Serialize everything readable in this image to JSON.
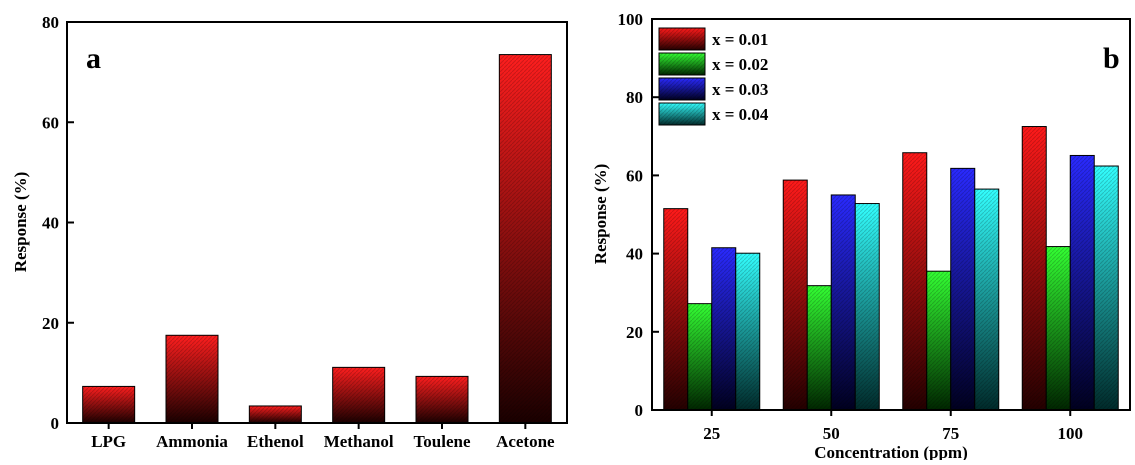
{
  "chart_data": [
    {
      "type": "bar",
      "panel_label": "a",
      "categories": [
        "LPG",
        "Ammonia",
        "Ethenol",
        "Methanol",
        "Toulene",
        "Acetone"
      ],
      "values": [
        7.3,
        17.5,
        3.4,
        11.1,
        9.3,
        73.5
      ],
      "xlabel": "",
      "ylabel": "Response (%)",
      "ylim": [
        0,
        80
      ],
      "yticks": [
        0,
        20,
        40,
        60,
        80
      ],
      "grid": false,
      "colors": {
        "bar_top": "#ff1e1e",
        "bar_bottom": "#1a0000"
      }
    },
    {
      "type": "bar",
      "panel_label": "b",
      "categories": [
        "25",
        "50",
        "75",
        "100"
      ],
      "xlabel": "Concentration (ppm)",
      "ylabel": "Response (%)",
      "ylim": [
        0,
        100
      ],
      "yticks": [
        0,
        20,
        40,
        60,
        80,
        100
      ],
      "grid": false,
      "legend_position": "top-left",
      "series": [
        {
          "name": "x = 0.01",
          "values": [
            51.5,
            58.8,
            65.8,
            72.5
          ],
          "color_top": "#ff1a1a",
          "color_bottom": "#240000"
        },
        {
          "name": "x = 0.02",
          "values": [
            27.2,
            31.8,
            35.5,
            41.8
          ],
          "color_top": "#33ff33",
          "color_bottom": "#002600"
        },
        {
          "name": "x = 0.03",
          "values": [
            41.5,
            55.0,
            61.8,
            65.1
          ],
          "color_top": "#2a2aff",
          "color_bottom": "#00001f"
        },
        {
          "name": "x = 0.04",
          "values": [
            40.1,
            52.8,
            56.5,
            62.4
          ],
          "color_top": "#33ffff",
          "color_bottom": "#002a2a"
        }
      ]
    }
  ]
}
